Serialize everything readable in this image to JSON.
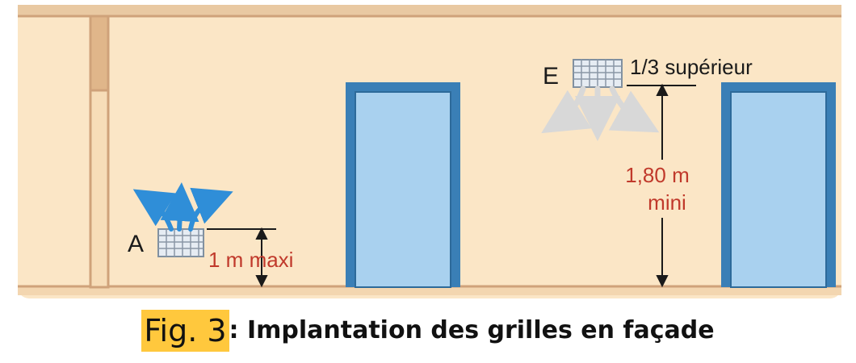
{
  "figure": {
    "colors": {
      "wall": "#fbe6c6",
      "outline": "#d2a77d",
      "door_frame": "#3a7fb6",
      "door_panel": "#a9d1ef",
      "measure_text": "#c0392b",
      "caption_highlight": "#ffc83d"
    },
    "grille_a": {
      "letter": "A",
      "measure": "1 m maxi"
    },
    "grille_e": {
      "letter": "E",
      "position": "1/3 supérieur",
      "measure_line1": "1,80 m",
      "measure_line2": "mini"
    }
  },
  "caption": {
    "fig_label": "Fig. 3",
    "text": ": Implantation des grilles en façade"
  }
}
